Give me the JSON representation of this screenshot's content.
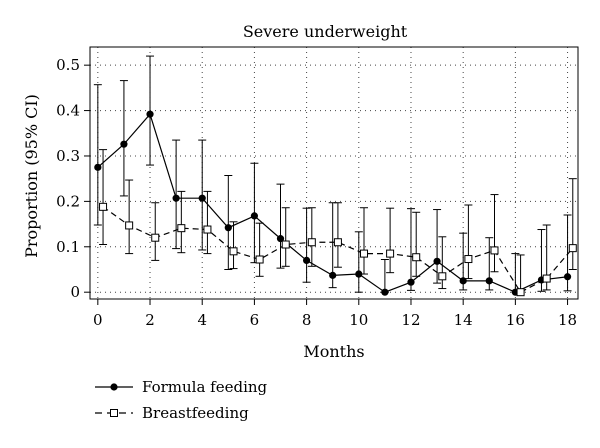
{
  "chart_data": {
    "type": "line",
    "title": "Severe underweight",
    "xlabel": "Months",
    "ylabel": "Proportion (95% CI)",
    "xlim": [
      -0.3,
      18.4
    ],
    "ylim": [
      -0.015,
      0.54
    ],
    "xticks": [
      0,
      2,
      4,
      6,
      8,
      10,
      12,
      14,
      16,
      18
    ],
    "xtick_labels": [
      "0",
      "2",
      "4",
      "6",
      "8",
      "10",
      "12",
      "14",
      "16",
      "18"
    ],
    "yticks": [
      0,
      0.1,
      0.2,
      0.3,
      0.4,
      0.5
    ],
    "ytick_labels": [
      "0",
      "0.1",
      "0.2",
      "0.3",
      "0.4",
      "0.5"
    ],
    "grid": "dotted",
    "legend_position": "bottom-left",
    "series": [
      {
        "name": "Formula feeding",
        "line_style": "solid",
        "marker": "filled-circle",
        "x": [
          0,
          1,
          2,
          3,
          4,
          5,
          6,
          7,
          8,
          9,
          10,
          11,
          12,
          13,
          14,
          15,
          16,
          17,
          18
        ],
        "values": [
          0.275,
          0.326,
          0.392,
          0.207,
          0.207,
          0.142,
          0.168,
          0.118,
          0.07,
          0.037,
          0.04,
          0.0,
          0.022,
          0.068,
          0.025,
          0.025,
          0.0,
          0.027,
          0.034
        ],
        "ci_low": [
          0.148,
          0.212,
          0.28,
          0.096,
          0.093,
          0.05,
          0.065,
          0.053,
          0.022,
          0.01,
          0.0,
          0.0,
          0.004,
          0.02,
          0.005,
          0.005,
          0.0,
          0.002,
          0.003
        ],
        "ci_high": [
          0.457,
          0.466,
          0.52,
          0.335,
          0.335,
          0.257,
          0.284,
          0.238,
          0.185,
          0.197,
          0.133,
          0.072,
          0.184,
          0.182,
          0.13,
          0.12,
          0.085,
          0.138,
          0.17
        ]
      },
      {
        "name": "Breastfeeding",
        "line_style": "dashed",
        "marker": "open-square",
        "x": [
          0.2,
          1.2,
          2.2,
          3.2,
          4.2,
          5.2,
          6.2,
          7.2,
          8.2,
          9.2,
          10.2,
          11.2,
          12.2,
          13.2,
          14.2,
          15.2,
          16.2,
          17.2,
          18.2
        ],
        "values": [
          0.188,
          0.147,
          0.12,
          0.141,
          0.138,
          0.09,
          0.072,
          0.105,
          0.11,
          0.11,
          0.085,
          0.085,
          0.077,
          0.035,
          0.073,
          0.092,
          0.0,
          0.03,
          0.097
        ],
        "ci_low": [
          0.105,
          0.085,
          0.07,
          0.087,
          0.085,
          0.052,
          0.035,
          0.057,
          0.057,
          0.055,
          0.04,
          0.043,
          0.035,
          0.008,
          0.03,
          0.045,
          0.0,
          0.005,
          0.05
        ],
        "ci_high": [
          0.314,
          0.247,
          0.197,
          0.222,
          0.222,
          0.155,
          0.152,
          0.186,
          0.186,
          0.197,
          0.186,
          0.185,
          0.176,
          0.122,
          0.192,
          0.215,
          0.082,
          0.148,
          0.25
        ]
      }
    ]
  }
}
